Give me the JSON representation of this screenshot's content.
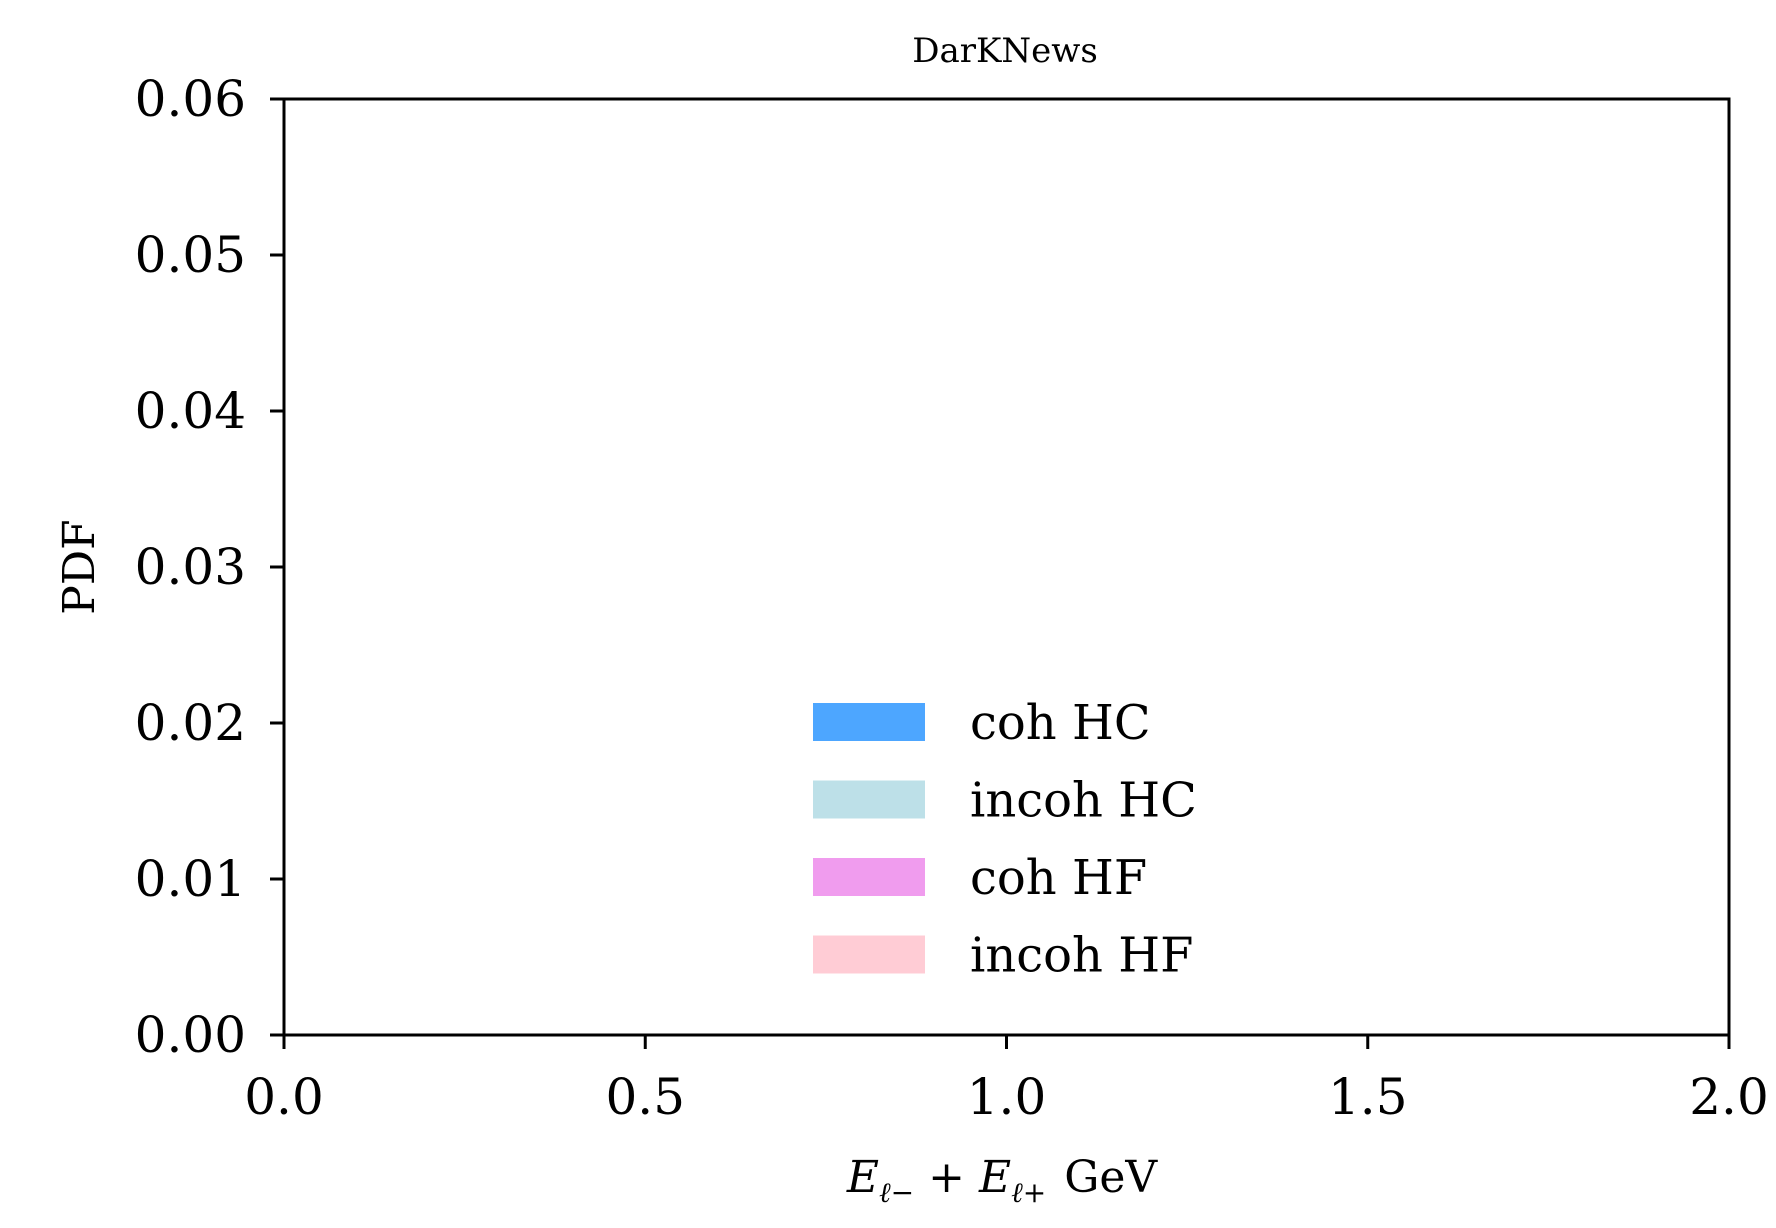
{
  "chart_data": {
    "type": "histogram",
    "title": "DarKNews",
    "xlabel": "E_{ℓ−} + E_{ℓ+} GeV",
    "ylabel": "PDF",
    "xlim": [
      0.0,
      2.0
    ],
    "ylim": [
      0.0,
      0.06
    ],
    "xticks": [
      0.0,
      0.5,
      1.0,
      1.5,
      2.0
    ],
    "xtick_labels": [
      "0.0",
      "0.5",
      "1.0",
      "1.5",
      "2.0"
    ],
    "yticks": [
      0.0,
      0.01,
      0.02,
      0.03,
      0.04,
      0.05,
      0.06
    ],
    "ytick_labels": [
      "0.00",
      "0.01",
      "0.02",
      "0.03",
      "0.04",
      "0.05",
      "0.06"
    ],
    "grid": false,
    "legend_position": "lower-center",
    "series": [
      {
        "name": "coh HC",
        "color": "#4da6ff",
        "values": []
      },
      {
        "name": "incoh HC",
        "color": "#bde0e8",
        "values": []
      },
      {
        "name": "coh HF",
        "color": "#f09cee",
        "values": []
      },
      {
        "name": "incoh HF",
        "color": "#ffccd5",
        "values": []
      }
    ]
  },
  "xlabel_parts": {
    "e1": "E",
    "sub1": "ℓ−",
    "plus": "+",
    "e2": "E",
    "sub2": "ℓ+",
    "unit": "GeV"
  }
}
